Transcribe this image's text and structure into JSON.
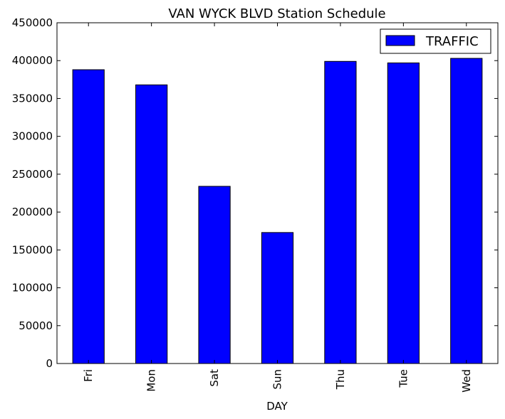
{
  "chart_data": {
    "type": "bar",
    "title": "VAN WYCK BLVD Station Schedule",
    "xlabel": "DAY",
    "ylabel": "",
    "categories": [
      "Fri",
      "Mon",
      "Sat",
      "Sun",
      "Thu",
      "Tue",
      "Wed"
    ],
    "series": [
      {
        "name": "TRAFFIC",
        "color": "#0000ff",
        "values": [
          388000,
          368000,
          234000,
          173000,
          399000,
          397000,
          403000
        ]
      }
    ],
    "ylim": [
      0,
      450000
    ],
    "yticks": [
      "0",
      "50000",
      "100000",
      "150000",
      "200000",
      "250000",
      "300000",
      "350000",
      "400000",
      "450000"
    ],
    "grid": false,
    "legend_position": "top-right"
  }
}
